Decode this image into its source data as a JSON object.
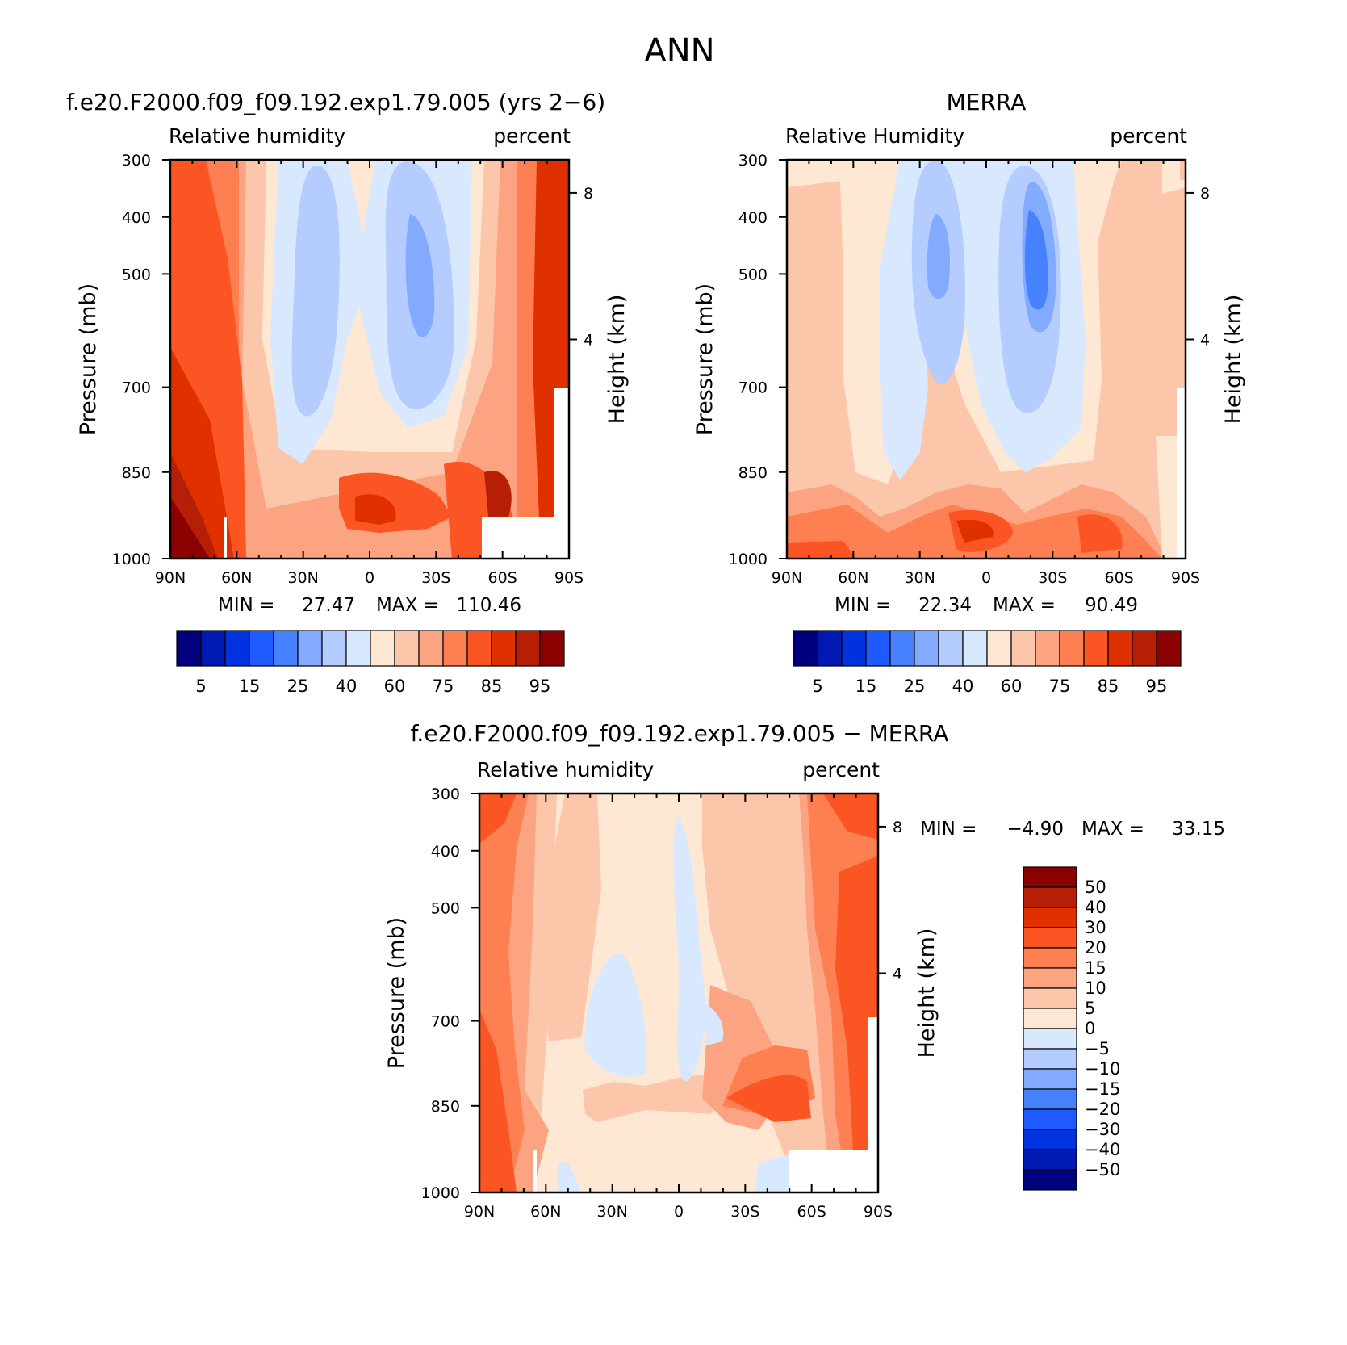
{
  "page_title": "ANN",
  "colors": {
    "rh_levels": [
      "#00007f",
      "#0019b2",
      "#0032e0",
      "#1e5aff",
      "#4682ff",
      "#82aaff",
      "#b4ccff",
      "#d7e8ff",
      "#fee8d4",
      "#fcc6aa",
      "#fca482",
      "#fd7f52",
      "#fc5524",
      "#e03000",
      "#b71e06",
      "#8b0000"
    ],
    "diff_levels": [
      "#00007f",
      "#0019b2",
      "#0032e0",
      "#1e5aff",
      "#4682ff",
      "#82aaff",
      "#b4ccff",
      "#d7e8ff",
      "#fee8d4",
      "#fcc6aa",
      "#fca482",
      "#fd7f52",
      "#fc5524",
      "#e03000",
      "#b71e06",
      "#8b0000"
    ]
  },
  "chart_data": [
    {
      "type": "heatmap",
      "title": "f.e20.F2000.f09_f09.192.exp1.79.005 (yrs 2−6)",
      "left_label": "Relative  humidity",
      "right_label": "percent",
      "xlabel": "",
      "ylabel": "Pressure  (mb)",
      "y2label": "Height  (km)",
      "x_ticks": [
        "90N",
        "60N",
        "30N",
        "0",
        "30S",
        "60S",
        "90S"
      ],
      "y_ticks": [
        "300",
        "400",
        "500",
        "700",
        "850",
        "1000"
      ],
      "y2_ticks": [
        "8",
        "4"
      ],
      "min_label": "MIN =",
      "min_value": "27.47",
      "max_label": "MAX =",
      "max_value": "110.46",
      "colorbar_labels": [
        "5",
        "15",
        "25",
        "40",
        "60",
        "75",
        "85",
        "95"
      ]
    },
    {
      "type": "heatmap",
      "title": "MERRA",
      "left_label": "Relative  Humidity",
      "right_label": "percent",
      "xlabel": "",
      "ylabel": "Pressure  (mb)",
      "y2label": "Height  (km)",
      "x_ticks": [
        "90N",
        "60N",
        "30N",
        "0",
        "30S",
        "60S",
        "90S"
      ],
      "y_ticks": [
        "300",
        "400",
        "500",
        "700",
        "850",
        "1000"
      ],
      "y2_ticks": [
        "8",
        "4"
      ],
      "min_label": "MIN =",
      "min_value": "22.34",
      "max_label": "MAX =",
      "max_value": "90.49",
      "colorbar_labels": [
        "5",
        "15",
        "25",
        "40",
        "60",
        "75",
        "85",
        "95"
      ]
    },
    {
      "type": "heatmap",
      "title": "f.e20.F2000.f09_f09.192.exp1.79.005 − MERRA",
      "left_label": "Relative  humidity",
      "right_label": "percent",
      "xlabel": "",
      "ylabel": "Pressure  (mb)",
      "y2label": "Height  (km)",
      "x_ticks": [
        "90N",
        "60N",
        "30N",
        "0",
        "30S",
        "60S",
        "90S"
      ],
      "y_ticks": [
        "300",
        "400",
        "500",
        "700",
        "850",
        "1000"
      ],
      "y2_ticks": [
        "8",
        "4"
      ],
      "min_label": "MIN =",
      "min_value": "−4.90",
      "max_label": "MAX =",
      "max_value": "33.15",
      "colorbar_labels": [
        "50",
        "40",
        "30",
        "20",
        "15",
        "10",
        "5",
        "0",
        "−5",
        "−10",
        "−15",
        "−20",
        "−30",
        "−40",
        "−50"
      ]
    }
  ]
}
